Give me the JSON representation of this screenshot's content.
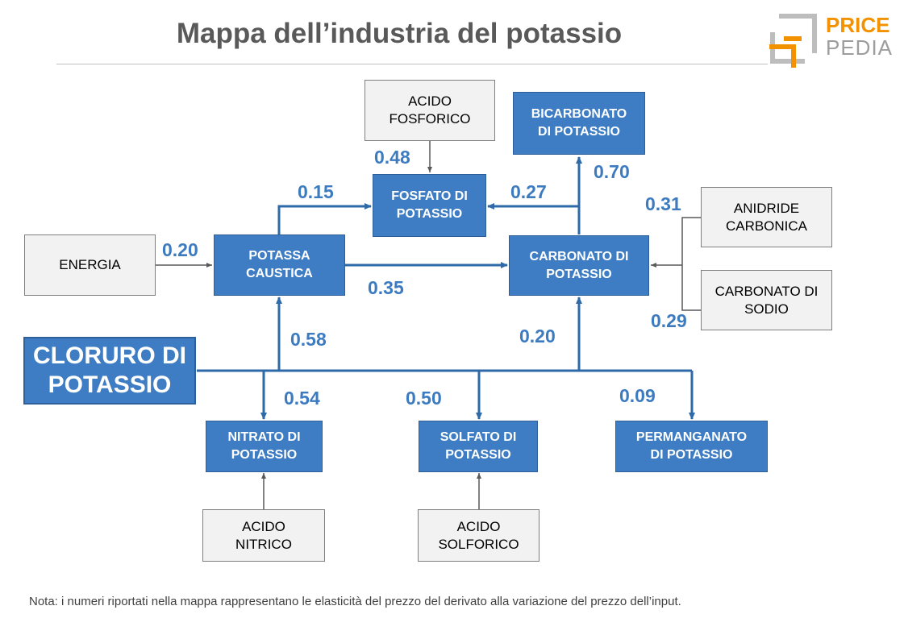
{
  "title": "Mappa dell’industria del potassio",
  "logo": {
    "top": "PRICE",
    "bottom": "PEDIA"
  },
  "nodes": {
    "acido_fosforico": "ACIDO\nFOSFORICO",
    "bicarbonato": "BICARBONATO\nDI POTASSIO",
    "fosfato": "FOSFATO DI\nPOTASSIO",
    "anidride": "ANIDRIDE\nCARBONICA",
    "energia": "ENERGIA",
    "potassa": "POTASSA\nCAUSTICA",
    "carbonato_potassio": "CARBONATO DI\nPOTASSIO",
    "carbonato_sodio": "CARBONATO DI\nSODIO",
    "cloruro": "CLORURO DI\nPOTASSIO",
    "nitrato": "NITRATO DI\nPOTASSIO",
    "solfato": "SOLFATO DI\nPOTASSIO",
    "permanganato": "PERMANGANATO\nDI POTASSIO",
    "acido_nitrico": "ACIDO\nNITRICO",
    "acido_solforico": "ACIDO\nSOLFORICO"
  },
  "elasticities": {
    "acido_fosforico_fosfato": "0.48",
    "potassa_fosfato": "0.15",
    "carbonato_fosfato": "0.27",
    "carbonato_bicarbonato": "0.70",
    "anidride_carbonato": "0.31",
    "energia_potassa": "0.20",
    "potassa_carbonato": "0.35",
    "sodio_carbonato": "0.29",
    "cloruro_potassa": "0.58",
    "cloruro_carbonato": "0.20",
    "cloruro_nitrato": "0.54",
    "cloruro_solfato": "0.50",
    "cloruro_permanganato": "0.09"
  },
  "note": "Nota: i numeri riportati nella mappa rappresentano le elasticità del prezzo del derivato alla variazione del prezzo dell’input.",
  "colors": {
    "product_fill": "#3e7dc4",
    "input_fill": "#f2f2f2",
    "arrow_blue": "#2e6aa8",
    "arrow_gray": "#595959",
    "logo_orange": "#f39200",
    "logo_gray": "#9d9d9d"
  }
}
